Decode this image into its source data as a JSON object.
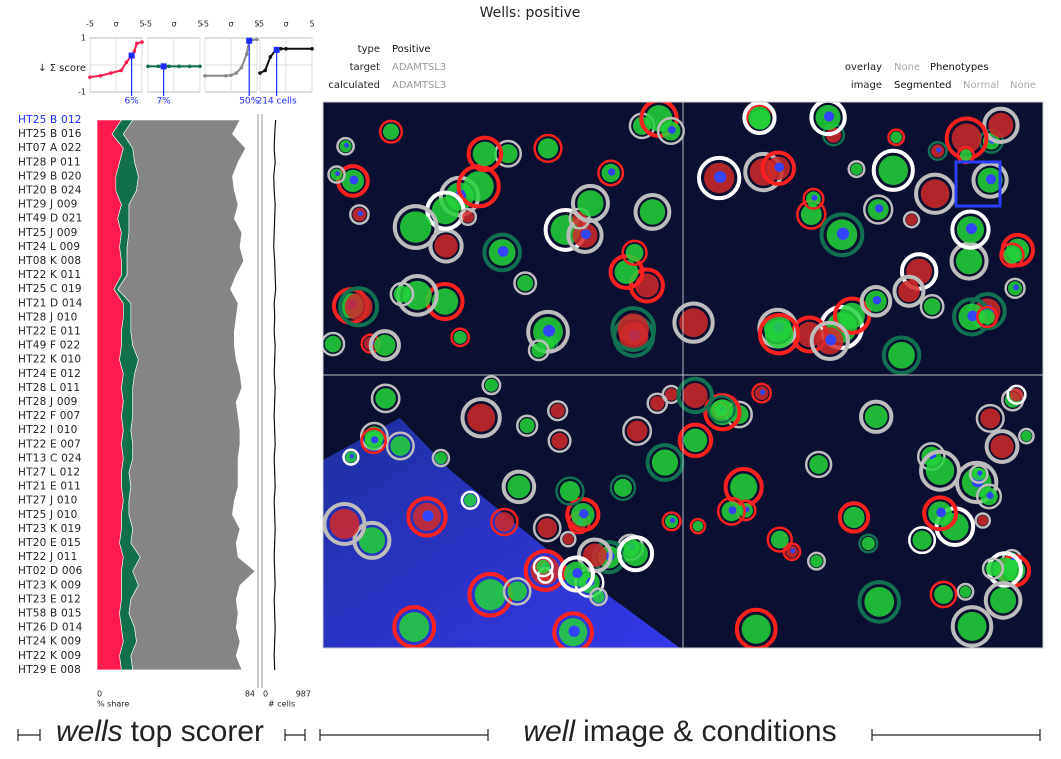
{
  "title": "Wells: positive",
  "score_plot": {
    "ylabel": "↓ Σ score",
    "xlim": [
      -5,
      5
    ],
    "ylim": [
      -1,
      1
    ],
    "xticks": [
      {
        "value": -5,
        "label": "-5"
      },
      {
        "value": 0,
        "label": "σ"
      },
      {
        "value": 5,
        "label": "5"
      }
    ],
    "yticks": [
      1,
      -1
    ],
    "panels": [
      {
        "color": "#ff1a4d",
        "x": [
          -5,
          -3,
          -1,
          1,
          2,
          3,
          3.5,
          4,
          5
        ],
        "y": [
          -0.45,
          -0.4,
          -0.3,
          -0.2,
          0.1,
          0.35,
          0.5,
          0.8,
          0.85
        ],
        "marker": 3,
        "label": "6%"
      },
      {
        "color": "#11704a",
        "x": [
          -5,
          -3,
          -1,
          1,
          3,
          5
        ],
        "y": [
          -0.05,
          -0.05,
          -0.05,
          -0.05,
          -0.05,
          -0.05
        ],
        "marker": -2,
        "label": "7%"
      },
      {
        "color": "#8a8a8a",
        "x": [
          -5,
          -1,
          0,
          1,
          2,
          3,
          3.5,
          5
        ],
        "y": [
          -0.4,
          -0.4,
          -0.38,
          -0.3,
          -0.1,
          0.4,
          0.9,
          0.95
        ],
        "marker": 3.5,
        "label": "50%"
      },
      {
        "color": "#111111",
        "x": [
          -5,
          -4,
          -3,
          -2,
          -1,
          0,
          5
        ],
        "y": [
          -0.3,
          -0.2,
          0.3,
          0.55,
          0.6,
          0.6,
          0.6
        ],
        "marker": -1.8,
        "label": "214 cells"
      }
    ]
  },
  "info": {
    "type": {
      "label": "type",
      "value": "Positive"
    },
    "target": {
      "label": "target",
      "value": "ADAMTSL3"
    },
    "calculated": {
      "label": "calculated",
      "value": "ADAMTSL3"
    }
  },
  "controls": {
    "overlay": {
      "label": "overlay",
      "options": [
        "None",
        "Phenotypes"
      ],
      "selected": 1
    },
    "image": {
      "label": "image",
      "options": [
        "Segmented",
        "Normal",
        "None"
      ],
      "selected": 0
    }
  },
  "well_list": {
    "selected": 0,
    "rows": [
      "HT25 B 012",
      "HT25 B 016",
      "HT07 A 022",
      "HT28 P 011",
      "HT29 B 020",
      "HT20 B 024",
      "HT29 J 009",
      "HT49 D 021",
      "HT25 J 009",
      "HT24 L 009",
      "HT08 K 008",
      "HT22 K 011",
      "HT25 C 019",
      "HT21 D 014",
      "HT28 J 010",
      "HT22 E 011",
      "HT49 F 022",
      "HT22 K 010",
      "HT24 E 012",
      "HT28 L 011",
      "HT28 J 009",
      "HT22 F 007",
      "HT22 I 010",
      "HT22 E 007",
      "HT13 C 024",
      "HT27 L 012",
      "HT21 E 011",
      "HT27 J 010",
      "HT25 J 010",
      "HT23 K 019",
      "HT20 E 015",
      "HT22 J 011",
      "HT02 D 006",
      "HT23 K 009",
      "HT23 E 012",
      "HT58 B 015",
      "HT26 D 014",
      "HT24 K 009",
      "HT22 K 009",
      "HT29 E 008"
    ],
    "share": {
      "xlim": [
        0,
        84
      ],
      "xticks": [
        0,
        84
      ],
      "xlabel": "% share",
      "series": [
        {
          "color": "#ff1a4d",
          "values": [
            13,
            8,
            14,
            12,
            10,
            10,
            13,
            11,
            13,
            12,
            13,
            13,
            9,
            14,
            14,
            13,
            13,
            12,
            14,
            13,
            14,
            13,
            14,
            13,
            14,
            13,
            13,
            14,
            13,
            13,
            12,
            14,
            13,
            13,
            13,
            12,
            13,
            14,
            12,
            13
          ]
        },
        {
          "color": "#11704a",
          "values": [
            6,
            6,
            5,
            8,
            12,
            11,
            4,
            6,
            4,
            4,
            3,
            3,
            2,
            4,
            4,
            5,
            6,
            10,
            6,
            6,
            5,
            6,
            4,
            6,
            5,
            4,
            5,
            3,
            4,
            6,
            6,
            9,
            6,
            9,
            5,
            5,
            7,
            7,
            6,
            6
          ]
        },
        {
          "color": "#858585",
          "values": [
            57,
            58,
            60,
            55,
            50,
            52,
            58,
            56,
            60,
            60,
            62,
            58,
            60,
            57,
            56,
            55,
            54,
            52,
            56,
            58,
            55,
            56,
            58,
            57,
            56,
            58,
            57,
            56,
            55,
            57,
            56,
            52,
            65,
            54,
            56,
            58,
            54,
            55,
            56,
            58
          ]
        }
      ]
    },
    "cells": {
      "xlim": [
        0,
        987
      ],
      "xticks": [
        0,
        987
      ],
      "xlabel": "# cells",
      "values": [
        260,
        240,
        230,
        250,
        220,
        230,
        250,
        240,
        230,
        220,
        240,
        250,
        260,
        230,
        240,
        230,
        250,
        240,
        230,
        250,
        240,
        230,
        240,
        250,
        230,
        240,
        250,
        230,
        240,
        250,
        240,
        230,
        240,
        250,
        230,
        240,
        250,
        240,
        230,
        240
      ]
    }
  },
  "footer": {
    "left": {
      "em": "wells",
      "text": "top scorer"
    },
    "right": {
      "em": "well",
      "text": "image & conditions"
    }
  }
}
